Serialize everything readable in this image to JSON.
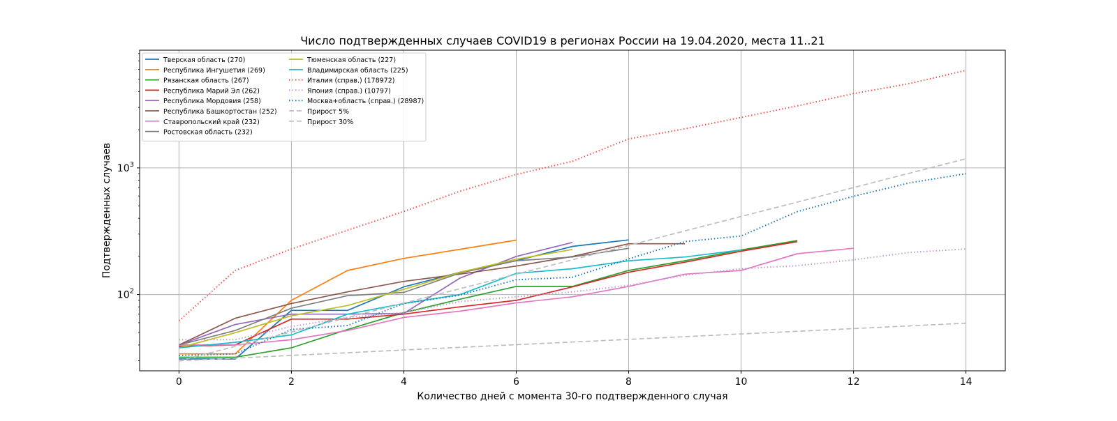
{
  "chart_data": {
    "type": "line",
    "title": "Число подтвержденных случаев COVID19 в регионах России на 19.04.2020, места 11..21",
    "xlabel": "Количество дней с момента 30-го подтвержденного случая",
    "ylabel": "Подтвержденных случаев",
    "xlim": [
      -0.7,
      14.7
    ],
    "ylim": [
      25,
      8500
    ],
    "yscale": "log",
    "grid": true,
    "legend_position": "top-left",
    "x_ticks": [
      0,
      2,
      4,
      6,
      8,
      10,
      12,
      14
    ],
    "y_ticks": [
      {
        "value": 100,
        "base": "10",
        "exp": "2"
      },
      {
        "value": 1000,
        "base": "10",
        "exp": "3"
      }
    ],
    "series": [
      {
        "name": "Тверская область (270)",
        "color": "#1f77b4",
        "style": "solid",
        "x": [
          0,
          1,
          2,
          3,
          4,
          5,
          6,
          7,
          8
        ],
        "y": [
          31,
          31,
          75,
          75,
          115,
          150,
          185,
          240,
          270
        ]
      },
      {
        "name": "Республика Ингушетия (269)",
        "color": "#ff7f0e",
        "style": "solid",
        "x": [
          0,
          1,
          2,
          3,
          4,
          5,
          6
        ],
        "y": [
          34,
          34,
          90,
          155,
          193,
          228,
          269
        ]
      },
      {
        "name": "Рязанская область (267)",
        "color": "#2ca02c",
        "style": "solid",
        "x": [
          0,
          1,
          2,
          3,
          4,
          5,
          6,
          7,
          8,
          9,
          10,
          11
        ],
        "y": [
          32,
          32,
          38,
          53,
          72,
          92,
          116,
          116,
          155,
          185,
          225,
          267
        ]
      },
      {
        "name": "Республика Марий Эл (262)",
        "color": "#d62728",
        "style": "solid",
        "x": [
          0,
          1,
          2,
          3,
          4,
          5,
          6,
          7,
          8,
          9,
          10,
          11
        ],
        "y": [
          39,
          40,
          64,
          64,
          70,
          80,
          90,
          115,
          150,
          180,
          220,
          262
        ]
      },
      {
        "name": "Республика Мордовия (258)",
        "color": "#9467bd",
        "style": "solid",
        "x": [
          0,
          1,
          2,
          3,
          4,
          5,
          6,
          7
        ],
        "y": [
          40,
          58,
          70,
          70,
          71,
          135,
          200,
          258
        ]
      },
      {
        "name": "Республика Башкортостан (252)",
        "color": "#8c564b",
        "style": "solid",
        "x": [
          0,
          1,
          2,
          3,
          4,
          5,
          6,
          7,
          8,
          9
        ],
        "y": [
          40,
          65,
          85,
          105,
          127,
          145,
          168,
          200,
          252,
          252
        ]
      },
      {
        "name": "Ставропольский край (232)",
        "color": "#e377c2",
        "style": "solid",
        "x": [
          0,
          1,
          2,
          3,
          4,
          5,
          6,
          7,
          8,
          9,
          10,
          11,
          12
        ],
        "y": [
          40,
          40,
          44,
          52,
          66,
          74,
          86,
          96,
          116,
          145,
          155,
          210,
          232
        ]
      },
      {
        "name": "Ростовская область (232)",
        "color": "#7f7f7f",
        "style": "solid",
        "x": [
          0,
          1,
          2,
          3,
          4,
          5,
          6,
          7,
          8
        ],
        "y": [
          40,
          52,
          78,
          98,
          104,
          148,
          185,
          198,
          232
        ]
      },
      {
        "name": "Тюменская область (227)",
        "color": "#bcbd22",
        "style": "solid",
        "x": [
          0,
          1,
          2,
          3,
          4,
          5,
          6,
          7
        ],
        "y": [
          38,
          50,
          68,
          82,
          110,
          150,
          190,
          227
        ]
      },
      {
        "name": "Владимирская область (225)",
        "color": "#17becf",
        "style": "solid",
        "x": [
          0,
          1,
          2,
          3,
          4,
          5,
          6,
          7,
          8,
          9,
          10
        ],
        "y": [
          38,
          42,
          48,
          70,
          85,
          100,
          147,
          160,
          185,
          198,
          225
        ]
      },
      {
        "name": "Италия (справ.) (178972)",
        "color": "#ef5350",
        "style": "dotted",
        "x": [
          0,
          1,
          2,
          3,
          4,
          5,
          6,
          7,
          8,
          9,
          10,
          11,
          12,
          13,
          14
        ],
        "y": [
          62,
          155,
          229,
          322,
          453,
          655,
          888,
          1128,
          1694,
          2036,
          2502,
          3089,
          3858,
          4636,
          5883
        ]
      },
      {
        "name": "Япония (справ.) (10797)",
        "color": "#c39bd3",
        "style": "dotted",
        "x": [
          0,
          1,
          2,
          3,
          4,
          5,
          6,
          7,
          8,
          9,
          10,
          11,
          12,
          13,
          14
        ],
        "y": [
          44,
          44,
          56,
          66,
          72,
          88,
          96,
          105,
          118,
          142,
          160,
          169,
          188,
          215,
          229
        ]
      },
      {
        "name": "Москва+область (справ.) (28987)",
        "color": "#1f77b4",
        "style": "dotted",
        "x": [
          0,
          1,
          2,
          3,
          4,
          5,
          6,
          7,
          8,
          9,
          10,
          11,
          12,
          13,
          14
        ],
        "y": [
          33,
          34,
          53,
          57,
          85,
          99,
          131,
          137,
          191,
          262,
          290,
          452,
          597,
          762,
          900
        ]
      },
      {
        "name": "Прирост 5%",
        "color": "#bdbdbd",
        "style": "dashed",
        "x": [
          0,
          1,
          2,
          3,
          4,
          5,
          6,
          7,
          8,
          9,
          10,
          11,
          12,
          13,
          14
        ],
        "y": [
          30,
          31.5,
          33.1,
          34.7,
          36.5,
          38.3,
          40.2,
          42.2,
          44.3,
          46.5,
          48.9,
          51.3,
          53.9,
          56.6,
          59.4
        ]
      },
      {
        "name": "Прирост 30%",
        "color": "#bdbdbd",
        "style": "dashed",
        "x": [
          0,
          1,
          2,
          3,
          4,
          5,
          6,
          7,
          8,
          9,
          10,
          11,
          12,
          13,
          14
        ],
        "y": [
          30,
          39,
          50.7,
          65.9,
          85.7,
          111.4,
          144.8,
          188.2,
          244.7,
          318.1,
          413.6,
          537.7,
          699,
          908.7,
          1181
        ]
      }
    ]
  }
}
